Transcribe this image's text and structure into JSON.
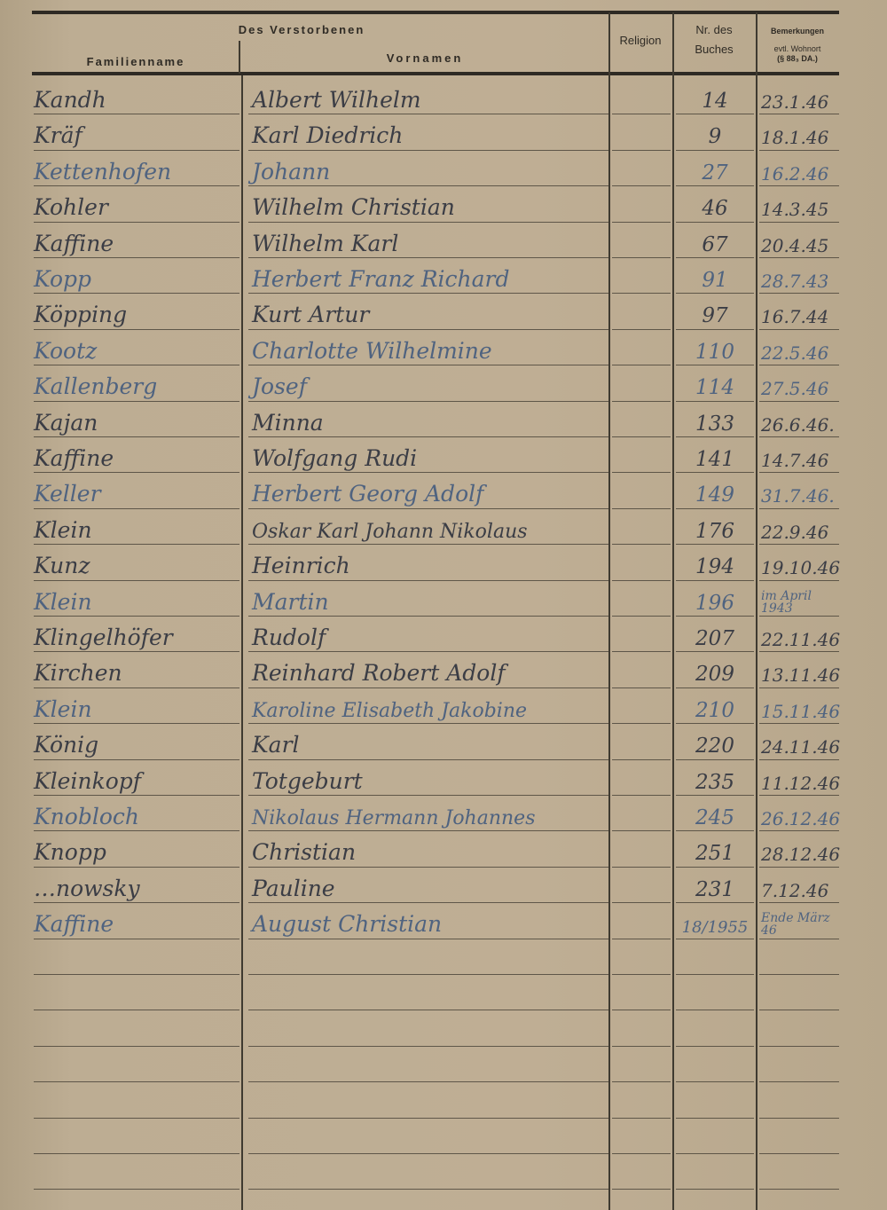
{
  "header": {
    "group": "Des Verstorbenen",
    "family_name": "Familienname",
    "first_names": "Vornamen",
    "religion": "Religion",
    "book_no_line1": "Nr. des",
    "book_no_line2": "Buches",
    "remarks_line1": "Bemerkungen",
    "remarks_line2": "evtl. Wohnort",
    "remarks_line3": "(§ 88₃ DA.)"
  },
  "entries": [
    {
      "family_name": "Kandh",
      "first_names": "Albert Wilhelm",
      "religion": "",
      "book_no": "14",
      "remarks": "23.1.46"
    },
    {
      "family_name": "Kräf",
      "first_names": "Karl Diedrich",
      "religion": "",
      "book_no": "9",
      "remarks": "18.1.46"
    },
    {
      "family_name": "Kettenhofen",
      "first_names": "Johann",
      "religion": "",
      "book_no": "27",
      "remarks": "16.2.46"
    },
    {
      "family_name": "Kohler",
      "first_names": "Wilhelm Christian",
      "religion": "",
      "book_no": "46",
      "remarks": "14.3.45"
    },
    {
      "family_name": "Kaffine",
      "first_names": "Wilhelm Karl",
      "religion": "",
      "book_no": "67",
      "remarks": "20.4.45"
    },
    {
      "family_name": "Kopp",
      "first_names": "Herbert Franz Richard",
      "religion": "",
      "book_no": "91",
      "remarks": "28.7.43"
    },
    {
      "family_name": "Köpping",
      "first_names": "Kurt Artur",
      "religion": "",
      "book_no": "97",
      "remarks": "16.7.44"
    },
    {
      "family_name": "Kootz",
      "first_names": "Charlotte Wilhelmine",
      "religion": "",
      "book_no": "110",
      "remarks": "22.5.46"
    },
    {
      "family_name": "Kallenberg",
      "first_names": "Josef",
      "religion": "",
      "book_no": "114",
      "remarks": "27.5.46"
    },
    {
      "family_name": "Kajan",
      "first_names": "Minna",
      "religion": "",
      "book_no": "133",
      "remarks": "26.6.46."
    },
    {
      "family_name": "Kaffine",
      "first_names": "Wolfgang Rudi",
      "religion": "",
      "book_no": "141",
      "remarks": "14.7.46"
    },
    {
      "family_name": "Keller",
      "first_names": "Herbert Georg Adolf",
      "religion": "",
      "book_no": "149",
      "remarks": "31.7.46."
    },
    {
      "family_name": "Klein",
      "first_names": "Oskar Karl Johann Nikolaus",
      "religion": "",
      "book_no": "176",
      "remarks": "22.9.46"
    },
    {
      "family_name": "Kunz",
      "first_names": "Heinrich",
      "religion": "",
      "book_no": "194",
      "remarks": "19.10.46"
    },
    {
      "family_name": "Klein",
      "first_names": "Martin",
      "religion": "",
      "book_no": "196",
      "remarks": "im April 1943"
    },
    {
      "family_name": "Klingelhöfer",
      "first_names": "Rudolf",
      "religion": "",
      "book_no": "207",
      "remarks": "22.11.46"
    },
    {
      "family_name": "Kirchen",
      "first_names": "Reinhard Robert Adolf",
      "religion": "",
      "book_no": "209",
      "remarks": "13.11.46"
    },
    {
      "family_name": "Klein",
      "first_names": "Karoline Elisabeth Jakobine",
      "religion": "",
      "book_no": "210",
      "remarks": "15.11.46"
    },
    {
      "family_name": "König",
      "first_names": "Karl",
      "religion": "",
      "book_no": "220",
      "remarks": "24.11.46"
    },
    {
      "family_name": "Kleinkopf",
      "first_names": "Totgeburt",
      "religion": "",
      "book_no": "235",
      "remarks": "11.12.46"
    },
    {
      "family_name": "Knobloch",
      "first_names": "Nikolaus Hermann Johannes",
      "religion": "",
      "book_no": "245",
      "remarks": "26.12.46"
    },
    {
      "family_name": "Knopp",
      "first_names": "Christian",
      "religion": "",
      "book_no": "251",
      "remarks": "28.12.46"
    },
    {
      "family_name": "…nowsky",
      "first_names": "Pauline",
      "religion": "",
      "book_no": "231",
      "remarks": "7.12.46"
    },
    {
      "family_name": "Kaffine",
      "first_names": "August Christian",
      "religion": "",
      "book_no": "18/1955",
      "remarks": "Ende März 46"
    }
  ],
  "colors": {
    "paper": "#bfae94",
    "ink": "#3b3d45",
    "ink_blue": "#4f6380",
    "rule": "#3f3a30"
  }
}
